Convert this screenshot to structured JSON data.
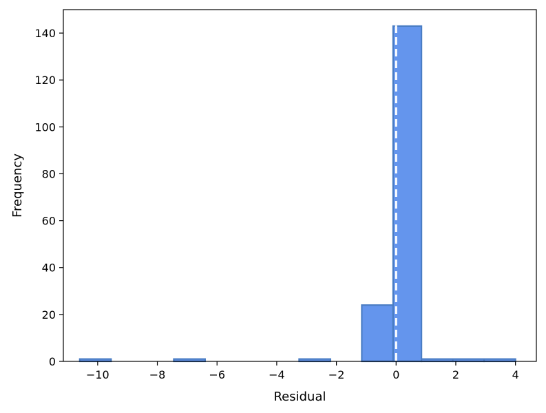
{
  "chart_data": {
    "type": "bar",
    "title": "",
    "xlabel": "Residual",
    "ylabel": "Frequency",
    "xlim": [
      -11.15,
      4.7
    ],
    "ylim": [
      0,
      150
    ],
    "grid": false,
    "xticks": [
      -10,
      -8,
      -6,
      -4,
      -2,
      0,
      2,
      4
    ],
    "xtick_labels": [
      "−10",
      "−8",
      "−6",
      "−4",
      "−2",
      "0",
      "2",
      "4"
    ],
    "yticks": [
      0,
      20,
      40,
      60,
      80,
      100,
      120,
      140
    ],
    "ytick_labels": [
      "0",
      "20",
      "40",
      "60",
      "80",
      "100",
      "120",
      "140"
    ],
    "bins": [
      {
        "x0": -10.6,
        "x1": -9.55,
        "count": 1
      },
      {
        "x0": -9.55,
        "x1": -8.5,
        "count": 0
      },
      {
        "x0": -8.5,
        "x1": -7.45,
        "count": 0
      },
      {
        "x0": -7.45,
        "x1": -6.4,
        "count": 1
      },
      {
        "x0": -6.4,
        "x1": -5.35,
        "count": 0
      },
      {
        "x0": -5.35,
        "x1": -4.3,
        "count": 0
      },
      {
        "x0": -4.3,
        "x1": -3.25,
        "count": 0
      },
      {
        "x0": -3.25,
        "x1": -2.2,
        "count": 1
      },
      {
        "x0": -2.2,
        "x1": -1.15,
        "count": 0
      },
      {
        "x0": -1.15,
        "x1": -0.1,
        "count": 24
      },
      {
        "x0": -0.1,
        "x1": 0.85,
        "count": 143
      },
      {
        "x0": 0.85,
        "x1": 1.9,
        "count": 1
      },
      {
        "x0": 1.9,
        "x1": 2.95,
        "count": 1
      },
      {
        "x0": 2.95,
        "x1": 4.0,
        "count": 1
      }
    ],
    "reference_line": {
      "x": 0,
      "style": "dashed",
      "color": "#ffffff"
    },
    "colors": {
      "bar_fill": "#6495ED",
      "bar_edge": "#4A7DC4",
      "background": "#ffffff",
      "axis": "#000000"
    }
  }
}
